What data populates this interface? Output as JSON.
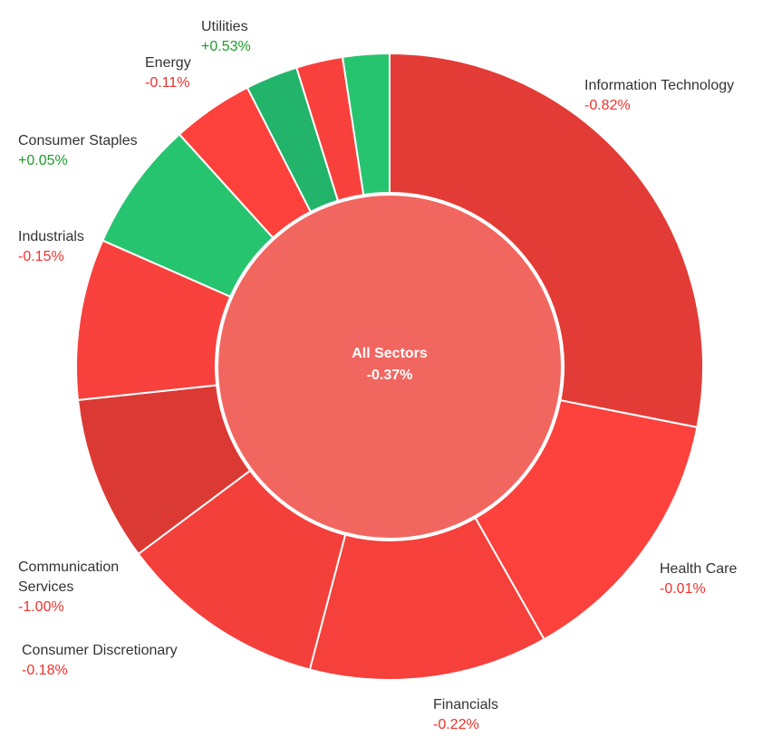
{
  "chart_data": {
    "type": "sunburst",
    "center": {
      "label": "All Sectors",
      "change": -0.37,
      "change_label": "-0.37%",
      "color": "#f26660"
    },
    "categories": [
      "Information Technology",
      "Health Care",
      "Financials",
      "Consumer Discretionary",
      "Communication Services",
      "Industrials",
      "Consumer Staples",
      "Energy",
      "Utilities",
      null,
      null
    ],
    "values": [
      28.1,
      13.7,
      12.3,
      10.7,
      8.5,
      8.3,
      6.7,
      4.2,
      2.7,
      2.4,
      2.4
    ],
    "changes": [
      -0.82,
      -0.01,
      -0.22,
      -0.18,
      -1.0,
      -0.15,
      0.05,
      -0.11,
      0.53,
      null,
      null
    ],
    "change_labels": [
      "-0.82%",
      "-0.01%",
      "-0.22%",
      "-0.18%",
      "-1.00%",
      "-0.15%",
      "+0.05%",
      "-0.11%",
      "+0.53%",
      null,
      null
    ],
    "colors": [
      "#e33b36",
      "#fd413c",
      "#f6403b",
      "#f4403b",
      "#db3a34",
      "#f8413c",
      "#27c46f",
      "#fd413c",
      "#21b46a",
      "#f8413c",
      "#27c46f"
    ]
  }
}
